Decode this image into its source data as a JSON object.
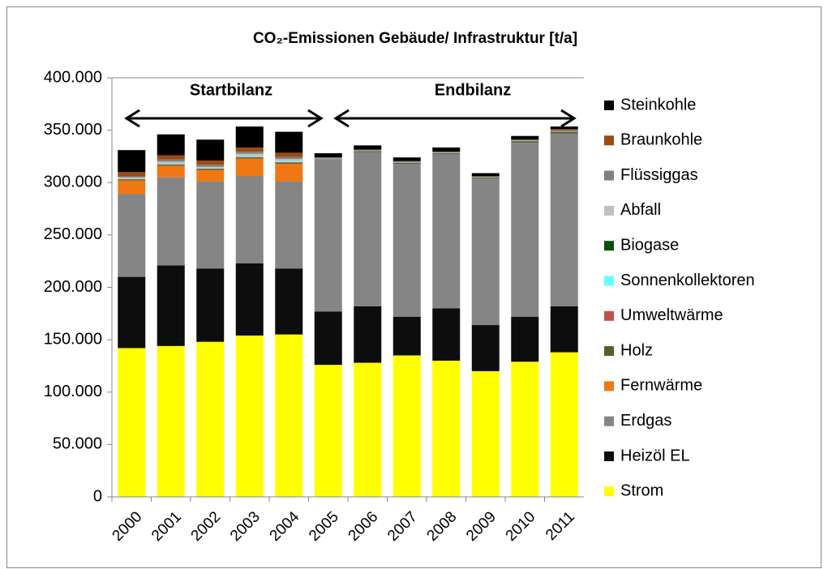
{
  "chart_data": {
    "type": "stacked_bar",
    "title": "CO₂-Emissionen Gebäude/ Infrastruktur [t/a]",
    "annotations": [
      "Startbilanz",
      "Endbilanz"
    ],
    "categories": [
      "2000",
      "2001",
      "2002",
      "2003",
      "2004",
      "2005",
      "2006",
      "2007",
      "2008",
      "2009",
      "2010",
      "2011"
    ],
    "ylim": [
      0,
      400000
    ],
    "yticks": [
      0,
      {
        "value": 50000,
        "label": "50.000"
      },
      {
        "value": 100000,
        "label": "100.000"
      },
      {
        "value": 150000,
        "label": "150.000"
      },
      {
        "value": 200000,
        "label": "200.000"
      },
      {
        "value": 250000,
        "label": "250.000"
      },
      {
        "value": 300000,
        "label": "300.000"
      },
      {
        "value": 350000,
        "label": "350.000"
      },
      {
        "value": 400000,
        "label": "400.000"
      }
    ],
    "series": [
      {
        "name": "Strom",
        "color": "#ffff00",
        "values": [
          142000,
          144000,
          148000,
          154000,
          155000,
          126000,
          128000,
          135000,
          130000,
          120000,
          129000,
          138000
        ]
      },
      {
        "name": "Heizöl EL",
        "color": "#0d0d0d",
        "values": [
          68000,
          77000,
          70000,
          69000,
          63000,
          51000,
          54000,
          37000,
          50000,
          44000,
          43000,
          44000
        ]
      },
      {
        "name": "Erdgas",
        "color": "#858585",
        "values": [
          79000,
          84000,
          83000,
          83000,
          83000,
          145000,
          147000,
          146000,
          147000,
          140000,
          166000,
          165000
        ]
      },
      {
        "name": "Fernwärme",
        "color": "#f07814",
        "values": [
          13000,
          11000,
          11000,
          17000,
          17000,
          0,
          0,
          0,
          0,
          0,
          0,
          0
        ]
      },
      {
        "name": "Holz",
        "color": "#4f6228",
        "values": [
          1000,
          1000,
          1000,
          1000,
          1000,
          500,
          1000,
          1000,
          1000,
          1000,
          1500,
          1500
        ]
      },
      {
        "name": "Umweltwärme",
        "color": "#c0504d",
        "values": [
          500,
          500,
          500,
          500,
          500,
          0,
          0,
          0,
          0,
          0,
          0,
          0
        ]
      },
      {
        "name": "Sonnenkollektoren",
        "color": "#66ffff",
        "values": [
          500,
          500,
          500,
          1000,
          1000,
          0,
          0,
          0,
          0,
          0,
          0,
          0
        ]
      },
      {
        "name": "Biogase",
        "color": "#0b4d0b",
        "values": [
          0,
          0,
          0,
          0,
          0,
          0,
          0,
          0,
          0,
          0,
          0,
          0
        ]
      },
      {
        "name": "Abfall",
        "color": "#c0c0c0",
        "values": [
          1000,
          2000,
          1000,
          2000,
          2000,
          500,
          500,
          500,
          500,
          500,
          500,
          500
        ]
      },
      {
        "name": "Flüssiggas",
        "color": "#808080",
        "values": [
          1000,
          2000,
          2000,
          2000,
          2000,
          1000,
          1000,
          1000,
          1000,
          500,
          1000,
          1000
        ]
      },
      {
        "name": "Braunkohle",
        "color": "#9c4a10",
        "values": [
          4000,
          4000,
          4000,
          4000,
          4000,
          0,
          0,
          0,
          0,
          0,
          0,
          1000
        ]
      },
      {
        "name": "Steinkohle",
        "color": "#000000",
        "values": [
          21000,
          20000,
          20000,
          20000,
          20000,
          4000,
          4000,
          3500,
          4000,
          3000,
          3500,
          2500
        ]
      }
    ]
  }
}
